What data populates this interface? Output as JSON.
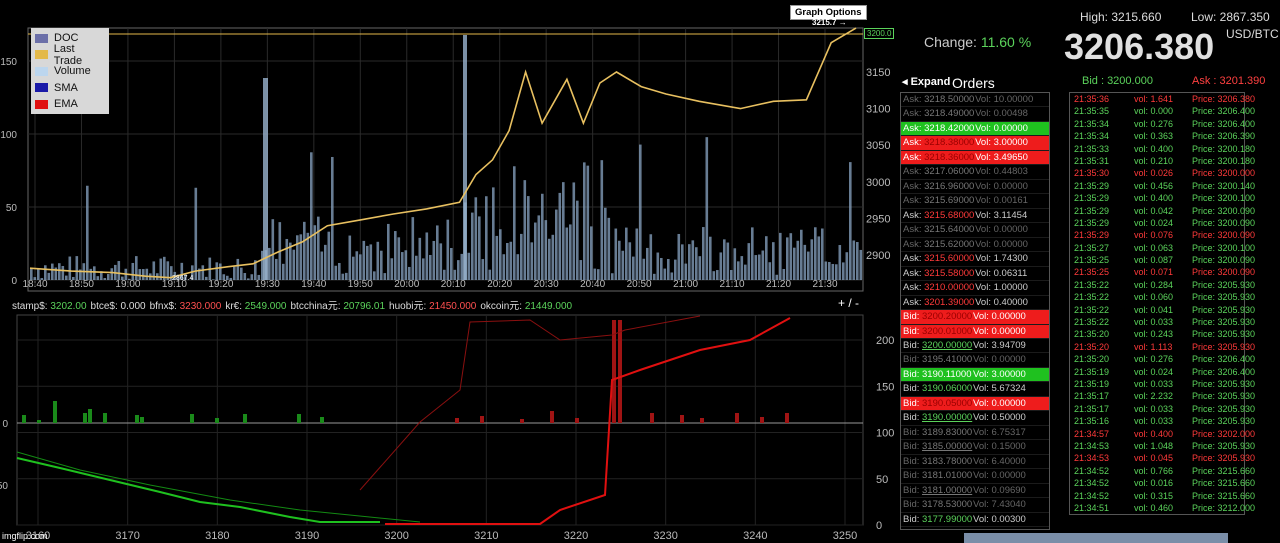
{
  "legend": [
    {
      "label": "DOC",
      "color": "#6b6fa8"
    },
    {
      "label": "Last Trade",
      "color": "#e3b94a"
    },
    {
      "label": "Volume",
      "color": "#bcd6ee"
    },
    {
      "label": "SMA",
      "color": "#1a1aa8"
    },
    {
      "label": "EMA",
      "color": "#e01010"
    }
  ],
  "graph_options_label": "Graph Options",
  "graph_high_marker": "3215.7 →",
  "graph_low_marker": "2867.4",
  "last_price_box": "3200.0",
  "zoom": "+ / -",
  "watermark": "imgflip.com",
  "stats": {
    "change_label": "Change:",
    "change": "11.60 %",
    "high": "High: 3215.660",
    "low": "Low: 2867.350",
    "price": "3206.380",
    "currency": "USD/BTC",
    "bid": "Bid  : 3200.000",
    "ask": "Ask : 3201.390"
  },
  "orders": {
    "expand": "◂ Expand",
    "title": "Orders"
  },
  "tickers": [
    {
      "name": "stamp$:",
      "value": "3202.00",
      "c": "g"
    },
    {
      "name": "btce$:",
      "value": "0.000",
      "c": ""
    },
    {
      "name": "bfnx$:",
      "value": "3230.000",
      "c": "r"
    },
    {
      "name": "kr€:",
      "value": "2549.000",
      "c": "g"
    },
    {
      "name": "btcchina元:",
      "value": "20796.01",
      "c": "g"
    },
    {
      "name": "huobi元:",
      "value": "21450.000",
      "c": "r"
    },
    {
      "name": "okcoin元:",
      "value": "21449.000",
      "c": "g"
    }
  ],
  "orderbook": [
    {
      "side": "Ask:",
      "price": "3218.50000",
      "vol": "Vol: 10.00000",
      "s": "ask dim"
    },
    {
      "side": "Ask:",
      "price": "3218.49000",
      "vol": "Vol: 0.00498",
      "s": "ask dim"
    },
    {
      "side": "Ask:",
      "price": "3218.42000",
      "vol": "Vol: 0.00000",
      "s": "ask hl-g"
    },
    {
      "side": "Ask:",
      "price": "3218.38000",
      "vol": "Vol: 3.00000",
      "s": "ask hl-r"
    },
    {
      "side": "Ask:",
      "price": "3218.36000",
      "vol": "Vol: 3.49650",
      "s": "ask hl-r"
    },
    {
      "side": "Ask:",
      "price": "3217.06000",
      "vol": "Vol: 0.44803",
      "s": "ask dim"
    },
    {
      "side": "Ask:",
      "price": "3216.96000",
      "vol": "Vol: 0.00000",
      "s": "ask dim"
    },
    {
      "side": "Ask:",
      "price": "3215.69000",
      "vol": "Vol: 0.00161",
      "s": "ask dim"
    },
    {
      "side": "Ask:",
      "price": "3215.68000",
      "vol": "Vol: 3.11454",
      "s": "ask"
    },
    {
      "side": "Ask:",
      "price": "3215.64000",
      "vol": "Vol: 0.00000",
      "s": "ask dim"
    },
    {
      "side": "Ask:",
      "price": "3215.62000",
      "vol": "Vol: 0.00000",
      "s": "ask dim"
    },
    {
      "side": "Ask:",
      "price": "3215.60000",
      "vol": "Vol: 1.74300",
      "s": "ask"
    },
    {
      "side": "Ask:",
      "price": "3215.58000",
      "vol": "Vol: 0.06311",
      "s": "ask"
    },
    {
      "side": "Ask:",
      "price": "3210.00000",
      "vol": "Vol: 1.00000",
      "s": "ask"
    },
    {
      "side": "Ask:",
      "price": "3201.39000",
      "vol": "Vol: 0.40000",
      "s": "ask"
    },
    {
      "side": "Bid:",
      "price": "3200.20000",
      "vol": "Vol: 0.00000",
      "s": "bid hl-r"
    },
    {
      "side": "Bid:",
      "price": "3200.01000",
      "vol": "Vol: 0.00000",
      "s": "bid hl-r"
    },
    {
      "side": "Bid:",
      "price": "3200.00000",
      "vol": "Vol: 3.94709",
      "s": "bid ul"
    },
    {
      "side": "Bid:",
      "price": "3195.41000",
      "vol": "Vol: 0.00000",
      "s": "bid dim"
    },
    {
      "side": "Bid:",
      "price": "3190.11000",
      "vol": "Vol: 3.00000",
      "s": "bid hl-g"
    },
    {
      "side": "Bid:",
      "price": "3190.06000",
      "vol": "Vol: 5.67324",
      "s": "bid"
    },
    {
      "side": "Bid:",
      "price": "3190.05000",
      "vol": "Vol: 0.00000",
      "s": "bid hl-r"
    },
    {
      "side": "Bid:",
      "price": "3190.00000",
      "vol": "Vol: 0.50000",
      "s": "bid ul"
    },
    {
      "side": "Bid:",
      "price": "3189.83000",
      "vol": "Vol: 6.75317",
      "s": "bid dim"
    },
    {
      "side": "Bid:",
      "price": "3185.00000",
      "vol": "Vol: 0.15000",
      "s": "bid dim ul"
    },
    {
      "side": "Bid:",
      "price": "3183.78000",
      "vol": "Vol: 6.40000",
      "s": "bid dim"
    },
    {
      "side": "Bid:",
      "price": "3181.01000",
      "vol": "Vol: 0.00000",
      "s": "bid dim"
    },
    {
      "side": "Bid:",
      "price": "3181.00000",
      "vol": "Vol: 0.09690",
      "s": "bid dim ul"
    },
    {
      "side": "Bid:",
      "price": "3178.53000",
      "vol": "Vol: 7.43040",
      "s": "bid dim"
    },
    {
      "side": "Bid:",
      "price": "3177.99000",
      "vol": "Vol: 0.00300",
      "s": "bid"
    }
  ],
  "trades": [
    {
      "t": "21:35:36",
      "v": "vol: 1.641",
      "p": "Price: 3206.380",
      "s": "sell"
    },
    {
      "t": "21:35:35",
      "v": "vol: 0.000",
      "p": "Price: 3206.400",
      "s": "buy"
    },
    {
      "t": "21:35:34",
      "v": "vol: 0.276",
      "p": "Price: 3206.400",
      "s": "buy"
    },
    {
      "t": "21:35:34",
      "v": "vol: 0.363",
      "p": "Price: 3206.390",
      "s": "buy"
    },
    {
      "t": "21:35:33",
      "v": "vol: 0.400",
      "p": "Price: 3200.180",
      "s": "buy"
    },
    {
      "t": "21:35:31",
      "v": "vol: 0.210",
      "p": "Price: 3200.180",
      "s": "buy"
    },
    {
      "t": "21:35:30",
      "v": "vol: 0.026",
      "p": "Price: 3200.000",
      "s": "sell"
    },
    {
      "t": "21:35:29",
      "v": "vol: 0.456",
      "p": "Price: 3200.140",
      "s": "buy"
    },
    {
      "t": "21:35:29",
      "v": "vol: 0.400",
      "p": "Price: 3200.100",
      "s": "buy"
    },
    {
      "t": "21:35:29",
      "v": "vol: 0.042",
      "p": "Price: 3200.090",
      "s": "buy"
    },
    {
      "t": "21:35:29",
      "v": "vol: 0.024",
      "p": "Price: 3200.090",
      "s": "buy"
    },
    {
      "t": "21:35:29",
      "v": "vol: 0.076",
      "p": "Price: 3200.090",
      "s": "sell"
    },
    {
      "t": "21:35:27",
      "v": "vol: 0.063",
      "p": "Price: 3200.100",
      "s": "buy"
    },
    {
      "t": "21:35:25",
      "v": "vol: 0.087",
      "p": "Price: 3200.090",
      "s": "buy"
    },
    {
      "t": "21:35:25",
      "v": "vol: 0.071",
      "p": "Price: 3200.090",
      "s": "sell"
    },
    {
      "t": "21:35:22",
      "v": "vol: 0.284",
      "p": "Price: 3205.930",
      "s": "buy"
    },
    {
      "t": "21:35:22",
      "v": "vol: 0.060",
      "p": "Price: 3205.930",
      "s": "buy"
    },
    {
      "t": "21:35:22",
      "v": "vol: 0.041",
      "p": "Price: 3205.930",
      "s": "buy"
    },
    {
      "t": "21:35:22",
      "v": "vol: 0.033",
      "p": "Price: 3205.930",
      "s": "buy"
    },
    {
      "t": "21:35:20",
      "v": "vol: 0.243",
      "p": "Price: 3205.930",
      "s": "buy"
    },
    {
      "t": "21:35:20",
      "v": "vol: 1.113",
      "p": "Price: 3205.930",
      "s": "sell"
    },
    {
      "t": "21:35:20",
      "v": "vol: 0.276",
      "p": "Price: 3206.400",
      "s": "buy"
    },
    {
      "t": "21:35:19",
      "v": "vol: 0.024",
      "p": "Price: 3206.400",
      "s": "buy"
    },
    {
      "t": "21:35:19",
      "v": "vol: 0.033",
      "p": "Price: 3205.930",
      "s": "buy"
    },
    {
      "t": "21:35:17",
      "v": "vol: 2.232",
      "p": "Price: 3205.930",
      "s": "buy"
    },
    {
      "t": "21:35:17",
      "v": "vol: 0.033",
      "p": "Price: 3205.930",
      "s": "buy"
    },
    {
      "t": "21:35:16",
      "v": "vol: 0.033",
      "p": "Price: 3205.930",
      "s": "buy"
    },
    {
      "t": "21:34:57",
      "v": "vol: 0.400",
      "p": "Price: 3202.000",
      "s": "sell"
    },
    {
      "t": "21:34:53",
      "v": "vol: 1.048",
      "p": "Price: 3205.930",
      "s": "buy"
    },
    {
      "t": "21:34:53",
      "v": "vol: 0.045",
      "p": "Price: 3205.930",
      "s": "sell"
    },
    {
      "t": "21:34:52",
      "v": "vol: 0.766",
      "p": "Price: 3215.660",
      "s": "buy"
    },
    {
      "t": "21:34:52",
      "v": "vol: 0.016",
      "p": "Price: 3215.660",
      "s": "buy"
    },
    {
      "t": "21:34:52",
      "v": "vol: 0.315",
      "p": "Price: 3215.660",
      "s": "buy"
    },
    {
      "t": "21:34:51",
      "v": "vol: 0.460",
      "p": "Price: 3212.000",
      "s": "buy"
    }
  ],
  "chart_data": [
    {
      "type": "line",
      "x_ticks": [
        "18:40",
        "18:50",
        "19:00",
        "19:10",
        "19:20",
        "19:30",
        "19:40",
        "19:50",
        "20:00",
        "20:10",
        "20:20",
        "20:30",
        "20:40",
        "20:50",
        "21:00",
        "21:10",
        "21:20",
        "21:30"
      ],
      "y_left_ticks": [
        "0",
        "50",
        "100",
        "150"
      ],
      "y_right_ticks": [
        "2900",
        "2950",
        "3000",
        "3050",
        "3100",
        "3150"
      ],
      "series": [
        {
          "name": "Last Trade",
          "color": "#e3b94a",
          "values": [
            [
              0,
              2882
            ],
            [
              0.05,
              2878
            ],
            [
              0.1,
              2876
            ],
            [
              0.14,
              2871
            ],
            [
              0.17,
              2869
            ],
            [
              0.2,
              2878
            ],
            [
              0.24,
              2884
            ],
            [
              0.27,
              2888
            ],
            [
              0.3,
              2904
            ],
            [
              0.33,
              2918
            ],
            [
              0.36,
              2940
            ],
            [
              0.4,
              2948
            ],
            [
              0.44,
              2956
            ],
            [
              0.48,
              2963
            ],
            [
              0.52,
              2972
            ],
            [
              0.54,
              3010
            ],
            [
              0.56,
              3030
            ],
            [
              0.58,
              3070
            ],
            [
              0.6,
              3150
            ],
            [
              0.62,
              3080
            ],
            [
              0.65,
              3140
            ],
            [
              0.67,
              3080
            ],
            [
              0.69,
              3135
            ],
            [
              0.71,
              3150
            ],
            [
              0.74,
              3130
            ],
            [
              0.77,
              3120
            ],
            [
              0.81,
              3110
            ],
            [
              0.86,
              3100
            ],
            [
              0.9,
              3110
            ],
            [
              0.94,
              3112
            ],
            [
              0.97,
              3190
            ],
            [
              1.0,
              3210
            ]
          ]
        },
        {
          "name": "Volume",
          "color": "#bcd6ee"
        }
      ]
    },
    {
      "type": "area",
      "x_ticks": [
        "3160",
        "3170",
        "3180",
        "3190",
        "3200",
        "3210",
        "3220",
        "3230",
        "3240",
        "3250"
      ],
      "y_left_ticks": [
        "0",
        "50"
      ],
      "y_right_ticks": [
        "0",
        "50",
        "100",
        "150",
        "200"
      ]
    }
  ]
}
